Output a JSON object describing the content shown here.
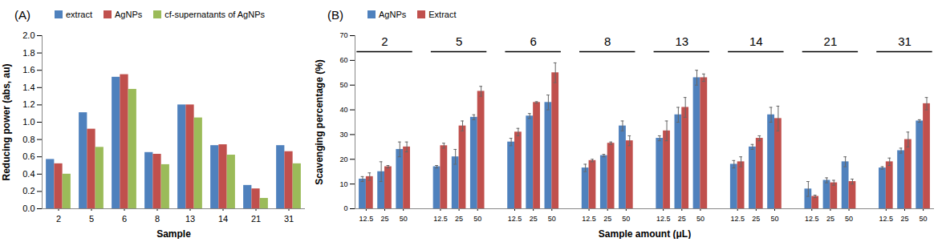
{
  "chart_data": [
    {
      "type": "bar",
      "title": "(A)",
      "xlabel": "Sample",
      "ylabel": "Reducing power (abs, au)",
      "categories": [
        "2",
        "5",
        "6",
        "8",
        "13",
        "14",
        "21",
        "31"
      ],
      "series": [
        {
          "name": "extract",
          "color": "#4F81BD",
          "values": [
            0.57,
            1.11,
            1.52,
            0.65,
            1.2,
            0.73,
            0.27,
            0.73
          ]
        },
        {
          "name": "AgNPs",
          "color": "#C0504D",
          "values": [
            0.52,
            0.92,
            1.55,
            0.63,
            1.2,
            0.74,
            0.23,
            0.66
          ]
        },
        {
          "name": "cf-supernatants of AgNPs",
          "color": "#9BBB59",
          "values": [
            0.4,
            0.71,
            1.38,
            0.51,
            1.05,
            0.62,
            0.12,
            0.52
          ]
        }
      ],
      "ylim": [
        0,
        2
      ],
      "yticks": [
        {
          "value": 0,
          "label": "0.0"
        },
        {
          "value": 0.2,
          "label": "0.2"
        },
        {
          "value": 0.4,
          "label": "0.4"
        },
        {
          "value": 0.6,
          "label": "0.6"
        },
        {
          "value": 0.8,
          "label": "0.8"
        },
        {
          "value": 1,
          "label": "1.0"
        },
        {
          "value": 1.2,
          "label": "1.2"
        },
        {
          "value": 1.4,
          "label": "1.4"
        },
        {
          "value": 1.6,
          "label": "1.6"
        },
        {
          "value": 1.8,
          "label": "1.8"
        },
        {
          "value": 2,
          "label": "2.0"
        }
      ],
      "grid": false,
      "legend": "top"
    },
    {
      "type": "bar",
      "title": "(B)",
      "xlabel": "Sample amount (μL)",
      "ylabel": "Scavenging percentage (%)",
      "groups": [
        "2",
        "5",
        "6",
        "8",
        "13",
        "14",
        "21",
        "31"
      ],
      "categories": [
        "12.5",
        "25",
        "50",
        "12.5",
        "25",
        "50",
        "12.5",
        "25",
        "50",
        "12.5",
        "25",
        "50",
        "12.5",
        "25",
        "50",
        "12.5",
        "25",
        "50",
        "12.5",
        "25",
        "50",
        "12.5",
        "25",
        "50"
      ],
      "series": [
        {
          "name": "AgNPs",
          "color": "#4F81BD",
          "values": [
            12,
            15,
            24,
            17,
            21,
            37,
            27,
            37.5,
            43,
            16.5,
            21.5,
            33.5,
            28.5,
            38,
            53,
            18,
            25,
            38,
            8,
            11.5,
            19,
            16.5,
            23.5,
            35.5
          ],
          "errors": [
            1,
            4,
            3,
            0.5,
            3,
            1,
            1.5,
            1,
            3,
            1.5,
            0.5,
            2,
            1,
            3,
            3,
            1.5,
            1,
            3,
            3,
            1,
            2,
            0.5,
            1,
            0.5
          ]
        },
        {
          "name": "Extract",
          "color": "#C0504D",
          "values": [
            13,
            17,
            25,
            25.5,
            33.5,
            47.5,
            31,
            43,
            55,
            19.5,
            26.5,
            27.5,
            31.5,
            41,
            53,
            19,
            28.5,
            36.5,
            5,
            10.5,
            11,
            19,
            28,
            42.5
          ],
          "errors": [
            1.5,
            0.5,
            2,
            1,
            2,
            2,
            1.5,
            0.3,
            4,
            0.5,
            0.5,
            2,
            4,
            4,
            1.5,
            2,
            1,
            5,
            0.5,
            1,
            1,
            1.5,
            3,
            2.5
          ]
        }
      ],
      "ylim": [
        0,
        70
      ],
      "yticks": [
        0,
        10,
        20,
        30,
        40,
        50,
        60,
        70
      ],
      "grid": false,
      "legend": "top left"
    }
  ]
}
